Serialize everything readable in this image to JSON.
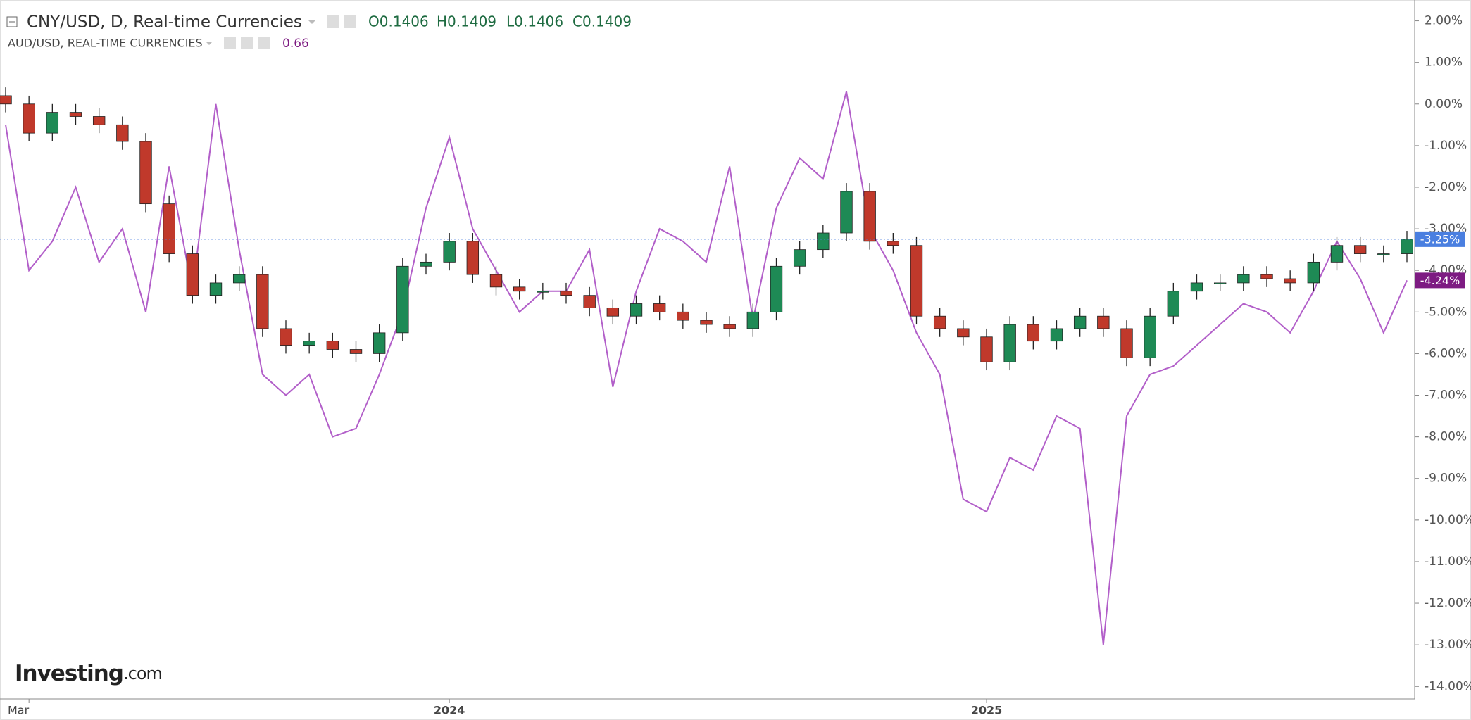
{
  "chart_data": {
    "type": "candlestick",
    "header": {
      "main": "CNY/USD, D, Real-time Currencies",
      "ohlc": [
        "O0.1406",
        "H0.1409",
        "L0.1406",
        "C0.1409"
      ],
      "sub": "AUD/USD, REAL-TIME CURRENCIES",
      "sub_value": "0.66"
    },
    "logo": {
      "brand": "Investing",
      "suffix": ".com"
    },
    "categories": [
      null,
      "Mar",
      null,
      null,
      null,
      null,
      null,
      null,
      null,
      null,
      null,
      null,
      null,
      null,
      null,
      null,
      null,
      null,
      null,
      "2024",
      null,
      null,
      null,
      null,
      null,
      null,
      null,
      null,
      null,
      null,
      null,
      null,
      null,
      null,
      null,
      null,
      null,
      null,
      null,
      null,
      null,
      null,
      "2025",
      null,
      null,
      null,
      null,
      null,
      null,
      null,
      null,
      null,
      null,
      null,
      null,
      null,
      null,
      null,
      null,
      null,
      null
    ],
    "ylim": [
      -14.3,
      2.5
    ],
    "yticks": [
      {
        "value": 2,
        "label": "2.00%"
      },
      {
        "value": 1,
        "label": "1.00%"
      },
      {
        "value": 0,
        "label": "0.00%"
      },
      {
        "value": -1,
        "label": "-1.00%"
      },
      {
        "value": -2,
        "label": "-2.00%"
      },
      {
        "value": -3,
        "label": "-3.00%"
      },
      {
        "value": -4,
        "label": "-4.00%"
      },
      {
        "value": -5,
        "label": "-5.00%"
      },
      {
        "value": -6,
        "label": "-6.00%"
      },
      {
        "value": -7,
        "label": "-7.00%"
      },
      {
        "value": -8,
        "label": "-8.00%"
      },
      {
        "value": -9,
        "label": "-9.00%"
      },
      {
        "value": -10,
        "label": "-10.00%"
      },
      {
        "value": -11,
        "label": "-11.00%"
      },
      {
        "value": -12,
        "label": "-12.00%"
      },
      {
        "value": -13,
        "label": "-13.00%"
      },
      {
        "value": -14,
        "label": "-14.00%"
      }
    ],
    "series": [
      {
        "name": "CNY/USD",
        "type": "candlestick",
        "up_color": "#1e8a55",
        "down_color": "#c0392b",
        "label_color": "#4a7fe0",
        "last_label": "-3.25%",
        "open": [
          0.2,
          0.0,
          -0.7,
          -0.2,
          -0.3,
          -0.5,
          -0.9,
          -2.4,
          -3.6,
          -4.6,
          -4.3,
          -4.1,
          -5.4,
          -5.8,
          -5.7,
          -5.9,
          -6.0,
          -5.5,
          -3.9,
          -3.8,
          -3.3,
          -4.1,
          -4.4,
          -4.5,
          -4.5,
          -4.6,
          -4.9,
          -5.1,
          -4.8,
          -5.0,
          -5.2,
          -5.3,
          -5.4,
          -5.0,
          -3.9,
          -3.5,
          -3.1,
          -2.1,
          -3.3,
          -3.4,
          -5.1,
          -5.4,
          -5.6,
          -6.2,
          -5.3,
          -5.7,
          -5.4,
          -5.1,
          -5.4,
          -6.1,
          -5.1,
          -4.5,
          -4.3,
          -4.3,
          -4.1,
          -4.2,
          -4.3,
          -3.8,
          -3.4,
          -3.6,
          -3.6
        ],
        "high": [
          0.4,
          0.2,
          0,
          0,
          -0.1,
          -0.3,
          -0.7,
          -2.2,
          -3.4,
          -4.1,
          -3.9,
          -3.9,
          -5.2,
          -5.5,
          -5.5,
          -5.7,
          -5.3,
          -3.7,
          -3.6,
          -3.1,
          -3.1,
          -3.9,
          -4.2,
          -4.3,
          -4.3,
          -4.4,
          -4.7,
          -4.6,
          -4.6,
          -4.8,
          -5.0,
          -5.1,
          -4.8,
          -3.7,
          -3.3,
          -2.9,
          -1.9,
          -1.9,
          -3.1,
          -3.2,
          -4.9,
          -5.2,
          -5.4,
          -5.1,
          -5.1,
          -5.2,
          -4.9,
          -4.9,
          -5.2,
          -4.9,
          -4.3,
          -4.1,
          -4.1,
          -3.9,
          -3.9,
          -4.0,
          -3.6,
          -3.2,
          -3.2,
          -3.4,
          -3.05
        ],
        "low": [
          -0.2,
          -0.9,
          -0.9,
          -0.5,
          -0.7,
          -1.1,
          -2.6,
          -3.8,
          -4.8,
          -4.8,
          -4.5,
          -5.6,
          -6.0,
          -6.0,
          -6.1,
          -6.2,
          -6.2,
          -5.7,
          -4.1,
          -4.0,
          -4.3,
          -4.6,
          -4.7,
          -4.7,
          -4.8,
          -5.1,
          -5.3,
          -5.3,
          -5.2,
          -5.4,
          -5.5,
          -5.6,
          -5.6,
          -5.2,
          -4.1,
          -3.7,
          -3.3,
          -3.5,
          -3.6,
          -5.3,
          -5.6,
          -5.8,
          -6.4,
          -6.4,
          -5.9,
          -5.9,
          -5.6,
          -5.6,
          -6.3,
          -6.3,
          -5.3,
          -4.7,
          -4.5,
          -4.5,
          -4.4,
          -4.5,
          -4.5,
          -4.0,
          -3.8,
          -3.8,
          -3.8
        ],
        "close": [
          0.0,
          -0.7,
          -0.2,
          -0.3,
          -0.5,
          -0.9,
          -2.4,
          -3.6,
          -4.6,
          -4.3,
          -4.1,
          -5.4,
          -5.8,
          -5.7,
          -5.9,
          -6.0,
          -5.5,
          -3.9,
          -3.8,
          -3.3,
          -4.1,
          -4.4,
          -4.5,
          -4.5,
          -4.6,
          -4.9,
          -5.1,
          -4.8,
          -5.0,
          -5.2,
          -5.3,
          -5.4,
          -5.0,
          -3.9,
          -3.5,
          -3.1,
          -2.1,
          -3.3,
          -3.4,
          -5.1,
          -5.4,
          -5.6,
          -6.2,
          -5.3,
          -5.7,
          -5.4,
          -5.1,
          -5.4,
          -6.1,
          -5.1,
          -4.5,
          -4.3,
          -4.3,
          -4.1,
          -4.2,
          -4.3,
          -3.8,
          -3.4,
          -3.6,
          -3.6,
          -3.25
        ]
      },
      {
        "name": "AUD/USD",
        "type": "line",
        "color": "#b25fc9",
        "label_color": "#7d1b82",
        "last_label": "-4.24%",
        "values": [
          -0.5,
          -4.0,
          -3.3,
          -2.0,
          -3.8,
          -3.0,
          -5.0,
          -1.5,
          -4.5,
          0.0,
          -3.5,
          -6.5,
          -7.0,
          -6.5,
          -8.0,
          -7.8,
          -6.5,
          -5.0,
          -2.5,
          -0.8,
          -3.0,
          -4.0,
          -5.0,
          -4.5,
          -4.5,
          -3.5,
          -6.8,
          -4.5,
          -3.0,
          -3.3,
          -3.8,
          -1.5,
          -5.2,
          -2.5,
          -1.3,
          -1.8,
          0.3,
          -3.0,
          -4.0,
          -5.5,
          -6.5,
          -9.5,
          -9.8,
          -8.5,
          -8.8,
          -7.5,
          -7.8,
          -13.0,
          -7.5,
          -6.5,
          -6.3,
          -5.8,
          -5.3,
          -4.8,
          -5.0,
          -5.5,
          -4.5,
          -3.3,
          -4.2,
          -5.5,
          -4.24
        ]
      }
    ]
  }
}
